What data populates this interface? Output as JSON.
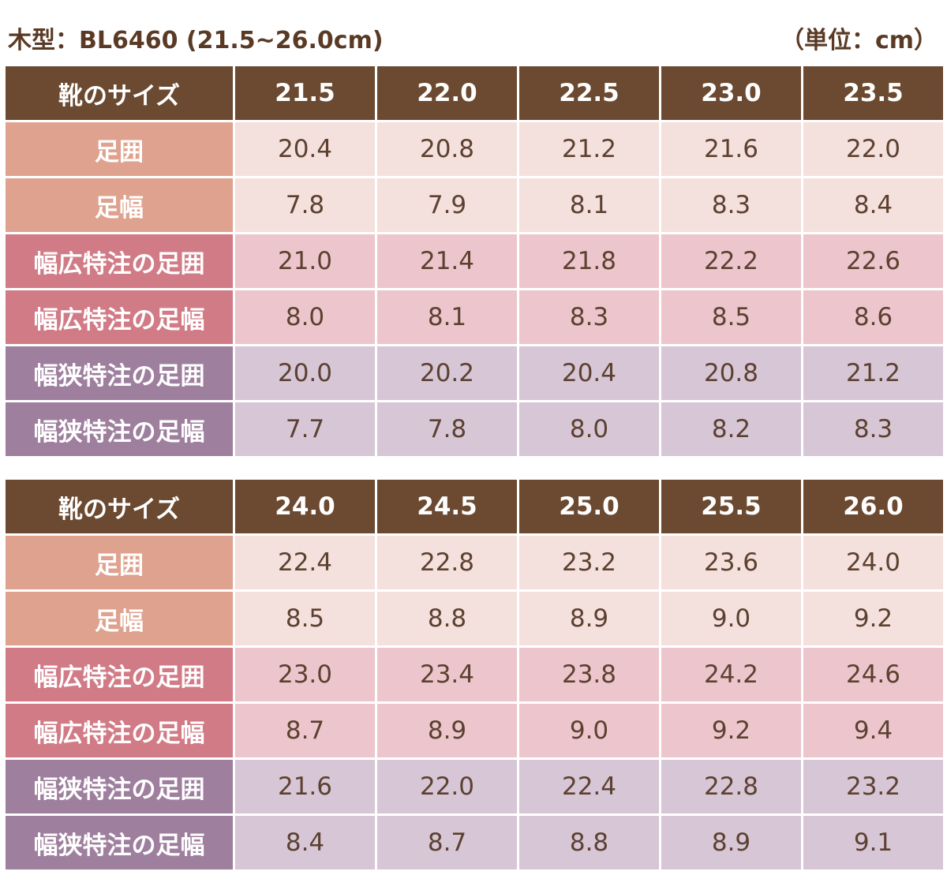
{
  "header": {
    "title": "木型：BL6460 (21.5~26.0cm)",
    "unit": "（単位：cm）"
  },
  "colors": {
    "header_bg": "#6b4a31",
    "normal_label": "#dea28e",
    "normal_cell": "#f4e0dc",
    "wide_label": "#d17b86",
    "wide_cell": "#ecc6cc",
    "narrow_label": "#9e7f9e",
    "narrow_cell": "#d6c6d6",
    "text": "#5c4030"
  },
  "tables": [
    {
      "header_label": "靴のサイズ",
      "sizes": [
        "21.5",
        "22.0",
        "22.5",
        "23.0",
        "23.5"
      ],
      "rows": [
        {
          "label": "足囲",
          "values": [
            "20.4",
            "20.8",
            "21.2",
            "21.6",
            "22.0"
          ]
        },
        {
          "label": "足幅",
          "values": [
            "7.8",
            "7.9",
            "8.1",
            "8.3",
            "8.4"
          ]
        },
        {
          "label": "幅広特注の足囲",
          "values": [
            "21.0",
            "21.4",
            "21.8",
            "22.2",
            "22.6"
          ]
        },
        {
          "label": "幅広特注の足幅",
          "values": [
            "8.0",
            "8.1",
            "8.3",
            "8.5",
            "8.6"
          ]
        },
        {
          "label": "幅狭特注の足囲",
          "values": [
            "20.0",
            "20.2",
            "20.4",
            "20.8",
            "21.2"
          ]
        },
        {
          "label": "幅狭特注の足幅",
          "values": [
            "7.7",
            "7.8",
            "8.0",
            "8.2",
            "8.3"
          ]
        }
      ]
    },
    {
      "header_label": "靴のサイズ",
      "sizes": [
        "24.0",
        "24.5",
        "25.0",
        "25.5",
        "26.0"
      ],
      "rows": [
        {
          "label": "足囲",
          "values": [
            "22.4",
            "22.8",
            "23.2",
            "23.6",
            "24.0"
          ]
        },
        {
          "label": "足幅",
          "values": [
            "8.5",
            "8.8",
            "8.9",
            "9.0",
            "9.2"
          ]
        },
        {
          "label": "幅広特注の足囲",
          "values": [
            "23.0",
            "23.4",
            "23.8",
            "24.2",
            "24.6"
          ]
        },
        {
          "label": "幅広特注の足幅",
          "values": [
            "8.7",
            "8.9",
            "9.0",
            "9.2",
            "9.4"
          ]
        },
        {
          "label": "幅狭特注の足囲",
          "values": [
            "21.6",
            "22.0",
            "22.4",
            "22.8",
            "23.2"
          ]
        },
        {
          "label": "幅狭特注の足幅",
          "values": [
            "8.4",
            "8.7",
            "8.8",
            "8.9",
            "9.1"
          ]
        }
      ]
    }
  ]
}
